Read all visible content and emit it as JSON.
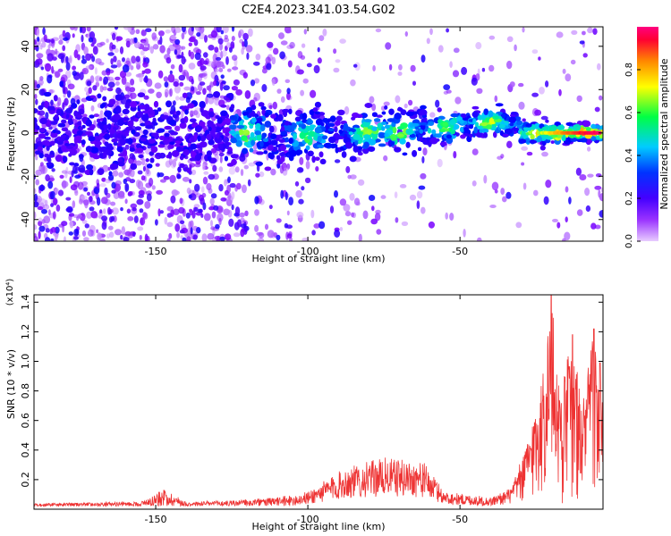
{
  "title": "C2E4.2023.341.03.54.G02",
  "chart_data": [
    {
      "type": "heatmap",
      "xlabel": "Height of straight line (km)",
      "ylabel": "Frequency (Hz)",
      "xlim": [
        -190,
        -3
      ],
      "ylim": [
        -50,
        49
      ],
      "x_ticks": [
        -150,
        -100,
        -50
      ],
      "y_ticks": [
        -40,
        -20,
        0,
        20,
        40
      ],
      "colormap": [
        "#e8ccff",
        "#7a00ff",
        "#0000ff",
        "#00ccff",
        "#00ff66",
        "#ffff00",
        "#ff8800",
        "#ff0033",
        "#ff0080"
      ],
      "colorbar": {
        "label": "Normalized spectral amplitude",
        "range": [
          0.0,
          1.0
        ],
        "ticks": [
          0.0,
          0.2,
          0.4,
          0.6,
          0.8
        ]
      },
      "hot_spots": [
        {
          "x": -120,
          "y": 0,
          "level": 0.45
        },
        {
          "x": -100,
          "y": -2,
          "level": 0.45
        },
        {
          "x": -80,
          "y": -1,
          "level": 0.5
        },
        {
          "x": -70,
          "y": 1,
          "level": 0.55
        },
        {
          "x": -55,
          "y": 3,
          "level": 0.5
        },
        {
          "x": -40,
          "y": 6,
          "level": 0.6
        },
        {
          "x": -25,
          "y": 5,
          "level": 0.65
        },
        {
          "x": -18,
          "y": 0,
          "level": 0.75
        },
        {
          "x": -10,
          "y": 0,
          "level": 0.85
        },
        {
          "x": -7,
          "y": 0,
          "level": 0.95
        }
      ]
    },
    {
      "type": "line",
      "xlabel": "Height of straight line (km)",
      "ylabel": "SNR (10 * v/v)",
      "scale_label": "(x10⁴)",
      "xlim": [
        -190,
        -3
      ],
      "ylim": [
        0,
        1.45
      ],
      "x_ticks": [
        -150,
        -100,
        -50
      ],
      "y_ticks": [
        0.2,
        0.4,
        0.6,
        0.8,
        1.0,
        1.2,
        1.4
      ],
      "color": "#ee3333",
      "envelope": [
        {
          "x": -190,
          "y": 0.04
        },
        {
          "x": -155,
          "y": 0.05
        },
        {
          "x": -147,
          "y": 0.14
        },
        {
          "x": -140,
          "y": 0.05
        },
        {
          "x": -125,
          "y": 0.06
        },
        {
          "x": -110,
          "y": 0.08
        },
        {
          "x": -100,
          "y": 0.12
        },
        {
          "x": -88,
          "y": 0.28
        },
        {
          "x": -75,
          "y": 0.35
        },
        {
          "x": -62,
          "y": 0.32
        },
        {
          "x": -55,
          "y": 0.12
        },
        {
          "x": -40,
          "y": 0.08
        },
        {
          "x": -33,
          "y": 0.15
        },
        {
          "x": -28,
          "y": 0.45
        },
        {
          "x": -23,
          "y": 0.9
        },
        {
          "x": -20,
          "y": 1.45
        },
        {
          "x": -17,
          "y": 0.8
        },
        {
          "x": -13,
          "y": 1.2
        },
        {
          "x": -10,
          "y": 0.7
        },
        {
          "x": -6,
          "y": 1.23
        },
        {
          "x": -3,
          "y": 0.7
        }
      ]
    }
  ]
}
